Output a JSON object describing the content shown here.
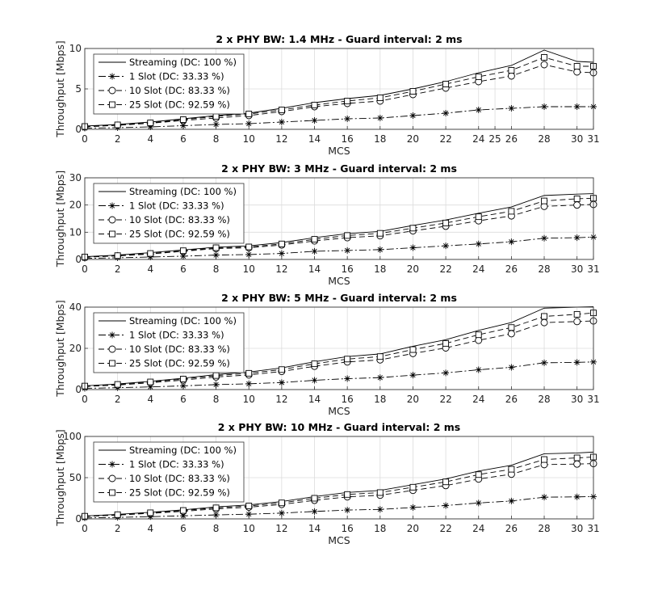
{
  "chart_data": [
    {
      "type": "line",
      "title": "2 x PHY BW: 1.4 MHz - Guard interval: 2 ms",
      "xlabel": "MCS",
      "ylabel": "Throughput [Mbps]",
      "xlim": [
        0,
        31
      ],
      "ylim": [
        0,
        10
      ],
      "xticks": [
        0,
        2,
        4,
        6,
        8,
        10,
        12,
        14,
        16,
        18,
        20,
        22,
        24,
        25,
        26,
        28,
        30,
        31
      ],
      "yticks": [
        0,
        5,
        10
      ],
      "x": [
        0,
        2,
        4,
        6,
        8,
        10,
        12,
        14,
        16,
        18,
        20,
        22,
        24,
        26,
        28,
        30,
        31
      ],
      "legend_position": "top-left",
      "grid": true,
      "series": [
        {
          "name": "Streaming (DC: 100 %)",
          "style": "solid",
          "marker": "none",
          "values": [
            0.4,
            0.6,
            0.9,
            1.3,
            1.7,
            2.0,
            2.6,
            3.3,
            3.8,
            4.2,
            5.0,
            5.9,
            7.0,
            7.9,
            9.8,
            8.4,
            8.3
          ]
        },
        {
          "name": "1 Slot (DC: 33.33 %)",
          "style": "dashdot",
          "marker": "asterisk",
          "values": [
            0.15,
            0.2,
            0.3,
            0.45,
            0.6,
            0.7,
            0.9,
            1.1,
            1.3,
            1.4,
            1.7,
            2.0,
            2.4,
            2.6,
            2.8,
            2.8,
            2.8
          ]
        },
        {
          "name": "10 Slot (DC: 83.33 %)",
          "style": "dashed",
          "marker": "circle",
          "values": [
            0.3,
            0.5,
            0.75,
            1.1,
            1.4,
            1.7,
            2.2,
            2.8,
            3.2,
            3.5,
            4.3,
            5.1,
            5.9,
            6.6,
            8.0,
            7.1,
            7.0
          ]
        },
        {
          "name": "25 Slot (DC: 92.59 %)",
          "style": "dashed",
          "marker": "square",
          "values": [
            0.35,
            0.55,
            0.8,
            1.2,
            1.6,
            1.9,
            2.4,
            3.0,
            3.5,
            3.9,
            4.7,
            5.6,
            6.5,
            7.3,
            8.9,
            7.8,
            7.8
          ]
        }
      ]
    },
    {
      "type": "line",
      "title": "2 x PHY BW: 3 MHz - Guard interval: 2 ms",
      "xlabel": "MCS",
      "ylabel": "Throughput [Mbps]",
      "xlim": [
        0,
        31
      ],
      "ylim": [
        0,
        30
      ],
      "xticks": [
        0,
        2,
        4,
        6,
        8,
        10,
        12,
        14,
        16,
        18,
        20,
        22,
        24,
        26,
        28,
        30,
        31
      ],
      "yticks": [
        0,
        10,
        20,
        30
      ],
      "x": [
        0,
        2,
        4,
        6,
        8,
        10,
        12,
        14,
        16,
        18,
        20,
        22,
        24,
        26,
        28,
        30,
        31
      ],
      "legend_position": "top-left",
      "grid": true,
      "series": [
        {
          "name": "Streaming (DC: 100 %)",
          "style": "solid",
          "marker": "none",
          "values": [
            1.0,
            1.6,
            2.5,
            3.5,
            4.5,
            5.0,
            6.2,
            8.0,
            9.5,
            10.3,
            12.5,
            14.5,
            17.0,
            19.3,
            23.5,
            24.0,
            24.2
          ]
        },
        {
          "name": "1 Slot (DC: 33.33 %)",
          "style": "dashdot",
          "marker": "asterisk",
          "values": [
            0.4,
            0.6,
            0.9,
            1.2,
            1.6,
            1.8,
            2.2,
            3.0,
            3.3,
            3.6,
            4.3,
            5.0,
            5.7,
            6.5,
            7.8,
            8.0,
            8.2
          ]
        },
        {
          "name": "10 Slot (DC: 83.33 %)",
          "style": "dashed",
          "marker": "circle",
          "values": [
            0.8,
            1.3,
            2.0,
            3.0,
            4.0,
            4.3,
            5.3,
            6.8,
            8.0,
            8.7,
            10.5,
            12.2,
            14.2,
            16.0,
            19.5,
            20.0,
            20.2
          ]
        },
        {
          "name": "25 Slot (DC: 92.59 %)",
          "style": "dashed",
          "marker": "square",
          "values": [
            0.9,
            1.4,
            2.2,
            3.2,
            4.3,
            4.6,
            5.7,
            7.4,
            8.8,
            9.6,
            11.5,
            13.4,
            15.7,
            17.7,
            21.5,
            22.3,
            22.5
          ]
        }
      ]
    },
    {
      "type": "line",
      "title": "2 x PHY BW: 5 MHz - Guard interval: 2 ms",
      "xlabel": "MCS",
      "ylabel": "Throughput [Mbps]",
      "xlim": [
        0,
        31
      ],
      "ylim": [
        0,
        40
      ],
      "xticks": [
        0,
        2,
        4,
        6,
        8,
        10,
        12,
        14,
        16,
        18,
        20,
        22,
        24,
        26,
        28,
        30,
        31
      ],
      "yticks": [
        0,
        20,
        40
      ],
      "x": [
        0,
        2,
        4,
        6,
        8,
        10,
        12,
        14,
        16,
        18,
        20,
        22,
        24,
        26,
        28,
        30,
        31
      ],
      "legend_position": "top-left",
      "grid": true,
      "series": [
        {
          "name": "Streaming (DC: 100 %)",
          "style": "solid",
          "marker": "none",
          "values": [
            1.8,
            2.7,
            4.0,
            5.5,
            7.3,
            8.5,
            10.5,
            13.5,
            16.0,
            17.3,
            21.0,
            24.2,
            28.7,
            32.5,
            39.5,
            40.0,
            40.2
          ]
        },
        {
          "name": "1 Slot (DC: 33.33 %)",
          "style": "dashdot",
          "marker": "asterisk",
          "values": [
            0.6,
            0.9,
            1.3,
            1.8,
            2.4,
            2.8,
            3.4,
            4.5,
            5.3,
            5.8,
            7.0,
            8.1,
            9.6,
            10.8,
            13.0,
            13.2,
            13.4
          ]
        },
        {
          "name": "10 Slot (DC: 83.33 %)",
          "style": "dashed",
          "marker": "circle",
          "values": [
            1.5,
            2.2,
            3.3,
            4.6,
            6.1,
            7.1,
            8.8,
            11.3,
            13.4,
            14.4,
            17.5,
            20.2,
            23.9,
            27.1,
            32.5,
            33.0,
            33.3
          ]
        },
        {
          "name": "25 Slot (DC: 92.59 %)",
          "style": "dashed",
          "marker": "square",
          "values": [
            1.7,
            2.5,
            3.7,
            5.1,
            6.8,
            7.9,
            9.7,
            12.5,
            14.8,
            16.0,
            19.4,
            22.4,
            26.6,
            30.1,
            35.5,
            36.5,
            37.2
          ]
        }
      ]
    },
    {
      "type": "line",
      "title": "2 x PHY BW: 10 MHz - Guard interval: 2 ms",
      "xlabel": "MCS",
      "ylabel": "Throughput [Mbps]",
      "xlim": [
        0,
        31
      ],
      "ylim": [
        0,
        100
      ],
      "xticks": [
        0,
        2,
        4,
        6,
        8,
        10,
        12,
        14,
        16,
        18,
        20,
        22,
        24,
        26,
        28,
        30,
        31
      ],
      "yticks": [
        0,
        50,
        100
      ],
      "x": [
        0,
        2,
        4,
        6,
        8,
        10,
        12,
        14,
        16,
        18,
        20,
        22,
        24,
        26,
        28,
        30,
        31
      ],
      "legend_position": "top-left",
      "grid": true,
      "series": [
        {
          "name": "Streaming (DC: 100 %)",
          "style": "solid",
          "marker": "none",
          "values": [
            3.5,
            5.5,
            8.0,
            11.0,
            14.5,
            17.0,
            21.0,
            27.0,
            32.0,
            34.5,
            41.5,
            48.5,
            58.0,
            65.0,
            79.0,
            80.0,
            81.0
          ]
        },
        {
          "name": "1 Slot (DC: 33.33 %)",
          "style": "dashdot",
          "marker": "asterisk",
          "values": [
            1.2,
            1.8,
            2.7,
            3.7,
            4.8,
            5.7,
            7.0,
            9.0,
            10.7,
            11.5,
            13.8,
            16.2,
            19.3,
            21.7,
            26.3,
            26.7,
            27.0
          ]
        },
        {
          "name": "10 Slot (DC: 83.33 %)",
          "style": "dashed",
          "marker": "circle",
          "values": [
            2.9,
            4.6,
            6.7,
            9.2,
            12.1,
            14.2,
            17.5,
            22.5,
            26.7,
            28.7,
            34.6,
            40.4,
            48.3,
            54.2,
            65.8,
            66.5,
            67.0
          ]
        },
        {
          "name": "25 Slot (DC: 92.59 %)",
          "style": "dashed",
          "marker": "square",
          "values": [
            3.2,
            5.1,
            7.4,
            10.2,
            13.4,
            15.7,
            19.4,
            25.0,
            29.6,
            31.9,
            38.4,
            44.9,
            53.7,
            60.2,
            72.0,
            74.0,
            75.0
          ]
        }
      ]
    }
  ]
}
